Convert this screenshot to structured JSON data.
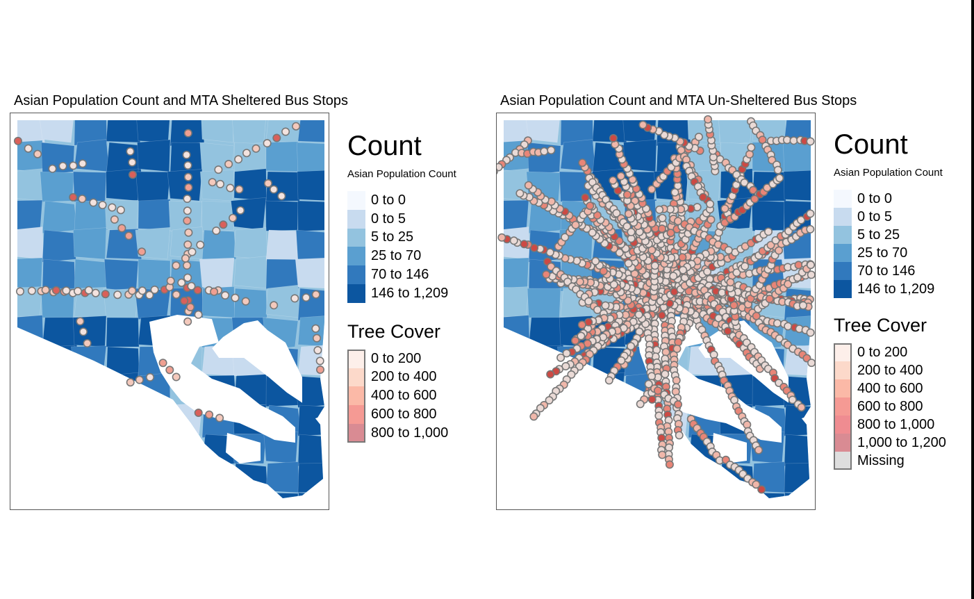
{
  "panels": [
    {
      "title": "Asian Population Count and MTA Sheltered Bus Stops",
      "count_heading": "Count",
      "count_subtitle": "Asian Population Count",
      "count_legend": [
        {
          "label": "0 to 0",
          "color": "#f4f8fe"
        },
        {
          "label": "0 to 5",
          "color": "#c8dbef"
        },
        {
          "label": "5 to 25",
          "color": "#93c3df"
        },
        {
          "label": "25 to 70",
          "color": "#5a9fd0"
        },
        {
          "label": "70 to 146",
          "color": "#3179bd"
        },
        {
          "label": "146 to 1,209",
          "color": "#0c56a0"
        }
      ],
      "tree_heading": "Tree Cover",
      "tree_legend": [
        {
          "label": "0 to 200",
          "color": "#fdefea"
        },
        {
          "label": "200 to 400",
          "color": "#fcd9ca"
        },
        {
          "label": "400 to 600",
          "color": "#fbb9a7"
        },
        {
          "label": "600 to 800",
          "color": "#f59a94"
        },
        {
          "label": "800 to 1,000",
          "color": "#d98b93"
        }
      ]
    },
    {
      "title": "Asian Population Count and MTA Un-Sheltered Bus Stops",
      "count_heading": "Count",
      "count_subtitle": "Asian Population Count",
      "count_legend": [
        {
          "label": "0 to 0",
          "color": "#f4f8fe"
        },
        {
          "label": "0 to 5",
          "color": "#c8dbef"
        },
        {
          "label": "5 to 25",
          "color": "#93c3df"
        },
        {
          "label": "25 to 70",
          "color": "#5a9fd0"
        },
        {
          "label": "70 to 146",
          "color": "#3179bd"
        },
        {
          "label": "146 to 1,209",
          "color": "#0c56a0"
        }
      ],
      "tree_heading": "Tree Cover",
      "tree_legend": [
        {
          "label": "0 to 200",
          "color": "#fdefea"
        },
        {
          "label": "200 to 400",
          "color": "#fcd9ca"
        },
        {
          "label": "400 to 600",
          "color": "#fbb9a7"
        },
        {
          "label": "600 to 800",
          "color": "#f59a94"
        },
        {
          "label": "800 to 1,000",
          "color": "#ef8c91"
        },
        {
          "label": "1,000 to 1,200",
          "color": "#d98b93"
        },
        {
          "label": "Missing",
          "color": "#dedede"
        }
      ]
    }
  ]
}
